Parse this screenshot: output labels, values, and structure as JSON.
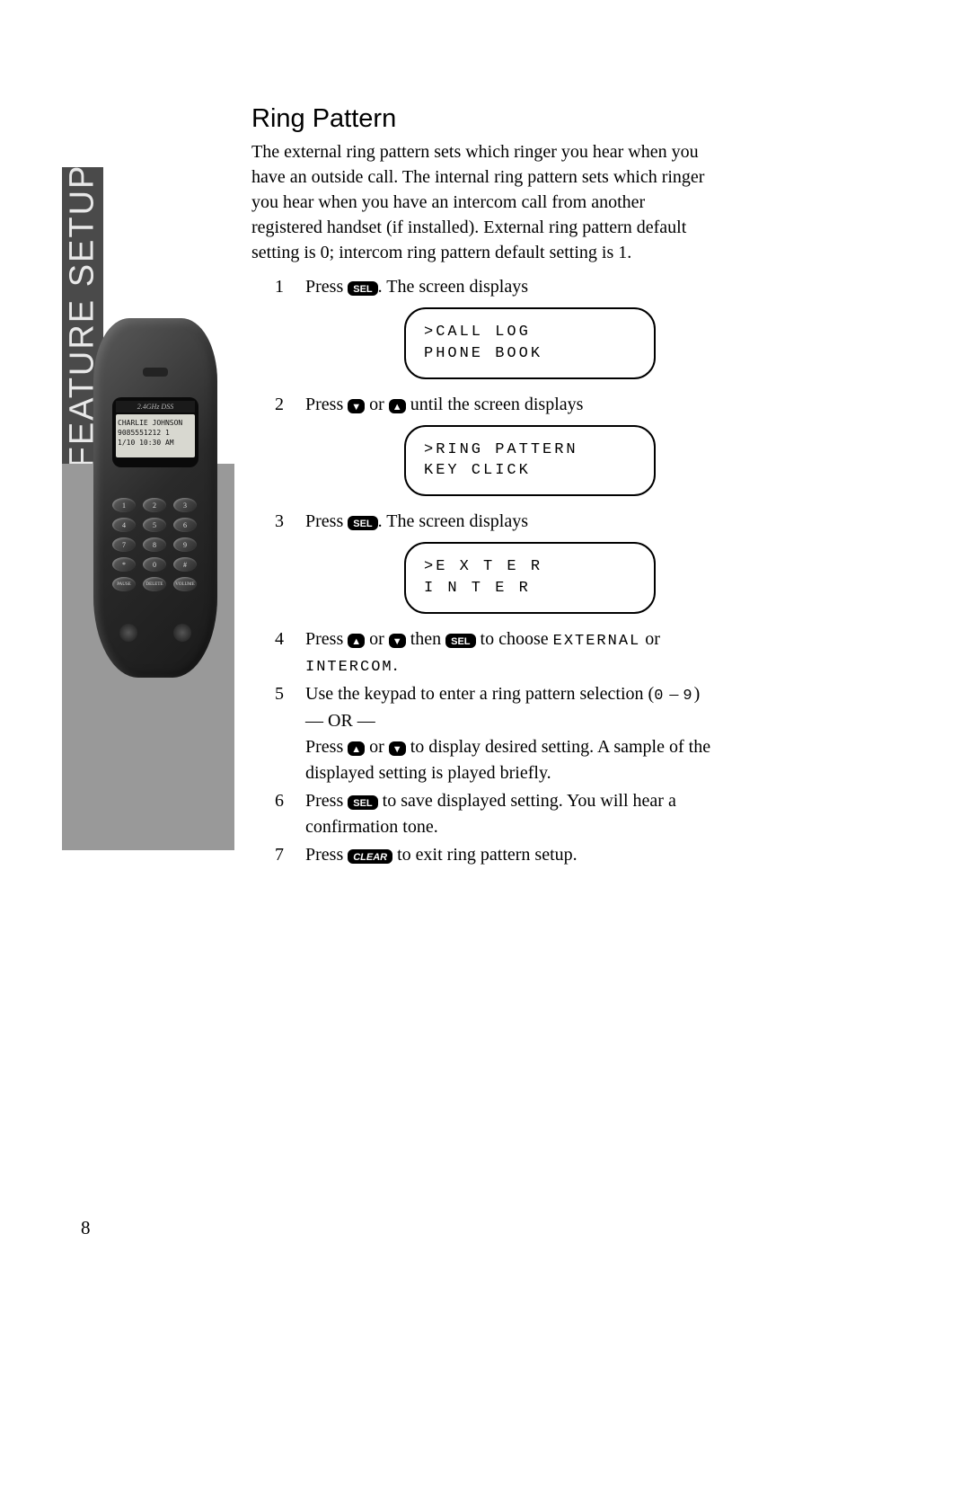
{
  "sidebar": {
    "label": "FEATURE SETUP"
  },
  "phone": {
    "topstrip": "2.4GHz DSS",
    "lcd_line1": "CHARLIE JOHNSON",
    "lcd_line2": "9085551212    1",
    "lcd_line3": "1/10 10:30 AM",
    "keys": [
      "1",
      "2",
      "3",
      "4",
      "5",
      "6",
      "7",
      "8",
      "9",
      "*",
      "0",
      "#",
      "PAUSE",
      "DELETE",
      "VOLUME"
    ]
  },
  "content": {
    "heading": "Ring Pattern",
    "intro": "The external ring pattern sets which ringer you hear when you have an outside call. The internal ring pattern sets which ringer you hear when you have an intercom call from another registered handset (if installed). External ring pattern default setting is 0; intercom ring pattern default setting is 1.",
    "buttons": {
      "sel": "SEL",
      "down": "▼",
      "up": "▲",
      "clear": "CLEAR"
    },
    "steps": {
      "s1_pre": "Press ",
      "s1_post": ". The screen displays",
      "screen1_l1": ">CALL LOG",
      "screen1_l2": " PHONE BOOK",
      "s2_pre": "Press ",
      "s2_mid": " or ",
      "s2_post": " until the screen displays",
      "screen2_l1": ">RING PATTERN",
      "screen2_l2": " KEY CLICK",
      "s3_pre": "Press ",
      "s3_post": ". The screen displays",
      "screen3_l1": ">E X T E R",
      "screen3_l2": " I N T E R",
      "s4_pre": "Press ",
      "s4_mid1": " or ",
      "s4_mid2": " then ",
      "s4_mid3": " to choose ",
      "s4_ext": "EXTERNAL",
      "s4_or": " or ",
      "s4_int": "INTERCOM",
      "s4_end": ".",
      "s5_a": "Use the keypad to enter a ring pattern selection (",
      "s5_lo": "0",
      "s5_dash": " – ",
      "s5_hi": "9",
      "s5_b": ")",
      "s5_or": "— OR —",
      "s5_c_pre": "Press ",
      "s5_c_mid": " or ",
      "s5_c_post": " to display desired setting. A sample of the displayed setting is played briefly.",
      "s6_pre": "Press ",
      "s6_post": " to save displayed setting. You will hear a confirmation tone.",
      "s7_pre": "Press ",
      "s7_post": " to exit ring pattern setup."
    }
  },
  "page_number": "8"
}
